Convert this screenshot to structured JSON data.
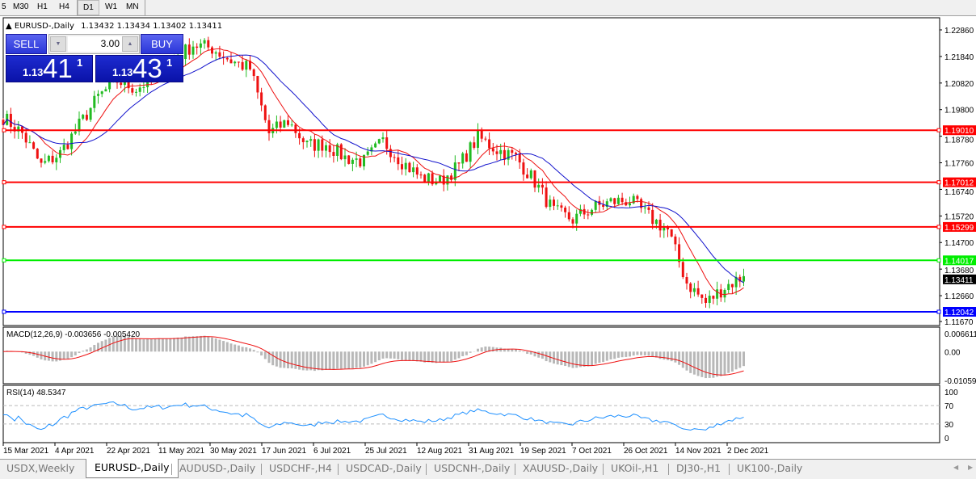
{
  "toolbar": {
    "timeframes": [
      "5",
      "M30",
      "H1",
      "H4",
      "D1",
      "W1",
      "MN"
    ],
    "active": "D1"
  },
  "chart_header": {
    "symbol": "EURUSD-,Daily",
    "ohlc": "1.13432 1.13434 1.13402 1.13411"
  },
  "trade_panel": {
    "sell_label": "SELL",
    "buy_label": "BUY",
    "volume": "3.00",
    "sell_small": "1.13",
    "sell_big": "41",
    "sell_pip": "1",
    "buy_small": "1.13",
    "buy_big": "43",
    "buy_pip": "1"
  },
  "colors": {
    "bull": "#22bb22",
    "bear": "#ee1111",
    "ma_fast": "#ee1111",
    "ma_slow": "#1010cc",
    "rsi": "#1e90ff",
    "macd_hist": "#b8b8b8",
    "macd_signal": "#ee1111"
  },
  "chart_data": {
    "type": "candlestick",
    "symbol": "EURUSD-",
    "timeframe": "Daily",
    "weekly_closes": [
      1.1951,
      1.1889,
      1.1765,
      1.1812,
      1.192,
      1.2029,
      1.2091,
      1.206,
      1.2106,
      1.2168,
      1.223,
      1.2215,
      1.2168,
      1.2137,
      1.1889,
      1.1936,
      1.1843,
      1.1849,
      1.1796,
      1.1781,
      1.1858,
      1.1781,
      1.1719,
      1.1703,
      1.1765,
      1.1874,
      1.1827,
      1.1796,
      1.1703,
      1.1589,
      1.1558,
      1.1601,
      1.1626,
      1.1632,
      1.157,
      1.1517,
      1.1316,
      1.1238,
      1.13,
      1.1341
    ],
    "last_price": "1.13411",
    "y_ticks": [
      "1.22860",
      "1.21840",
      "1.20820",
      "1.19800",
      "1.18780",
      "1.17760",
      "1.16740",
      "1.15720",
      "1.14700",
      "1.13680",
      "1.12660",
      "1.11670"
    ],
    "ylim": [
      1.1167,
      1.2286
    ],
    "levels": [
      {
        "price": "1.19010",
        "color": "#ff0000"
      },
      {
        "price": "1.17012",
        "color": "#ff0000"
      },
      {
        "price": "1.15299",
        "color": "#ff0000"
      },
      {
        "price": "1.14017",
        "color": "#00ee00"
      },
      {
        "price": "1.12042",
        "color": "#0000ff"
      }
    ],
    "x_ticks": [
      "15 Mar 2021",
      "4 Apr 2021",
      "22 Apr 2021",
      "11 May 2021",
      "30 May 2021",
      "17 Jun 2021",
      "6 Jul 2021",
      "25 Jul 2021",
      "12 Aug 2021",
      "31 Aug 2021",
      "19 Sep 2021",
      "7 Oct 2021",
      "26 Oct 2021",
      "14 Nov 2021",
      "2 Dec 2021"
    ],
    "macd": {
      "label": "MACD(12,26,9) -0.003656 -0.005420",
      "y_ticks": [
        "0.006611",
        "0.00",
        "-0.010595"
      ]
    },
    "rsi": {
      "label": "RSI(14) 48.5347",
      "y_ticks": [
        "100",
        "70",
        "30",
        "0"
      ],
      "levels": [
        70,
        30
      ]
    }
  },
  "tabs": [
    "USDX,Weekly",
    "EURUSD-,Daily",
    "AUDUSD-,Daily",
    "USDCHF-,H4",
    "USDCAD-,Daily",
    "USDCNH-,Daily",
    "XAUUSD-,Daily",
    "UKOil-,H1",
    "DJ30-,H1",
    "UK100-,Daily"
  ],
  "active_tab": "EURUSD-,Daily"
}
